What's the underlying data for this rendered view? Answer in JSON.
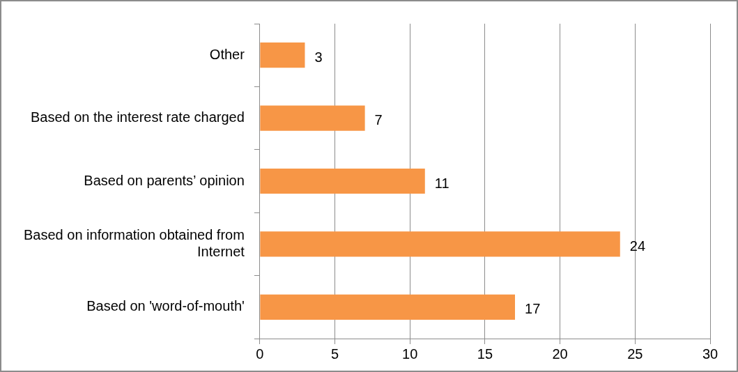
{
  "chart_data": {
    "type": "bar",
    "orientation": "horizontal",
    "categories": [
      "Other",
      "Based on the interest rate charged",
      "Based on parents’ opinion",
      "Based on information obtained from Internet",
      "Based on 'word-of-mouth'"
    ],
    "values": [
      3,
      7,
      11,
      24,
      17
    ],
    "color": "#f79646",
    "xlim": [
      0,
      30
    ],
    "xticks": [
      0,
      5,
      10,
      15,
      20,
      25,
      30
    ],
    "grid": "x",
    "data_labels": true
  }
}
